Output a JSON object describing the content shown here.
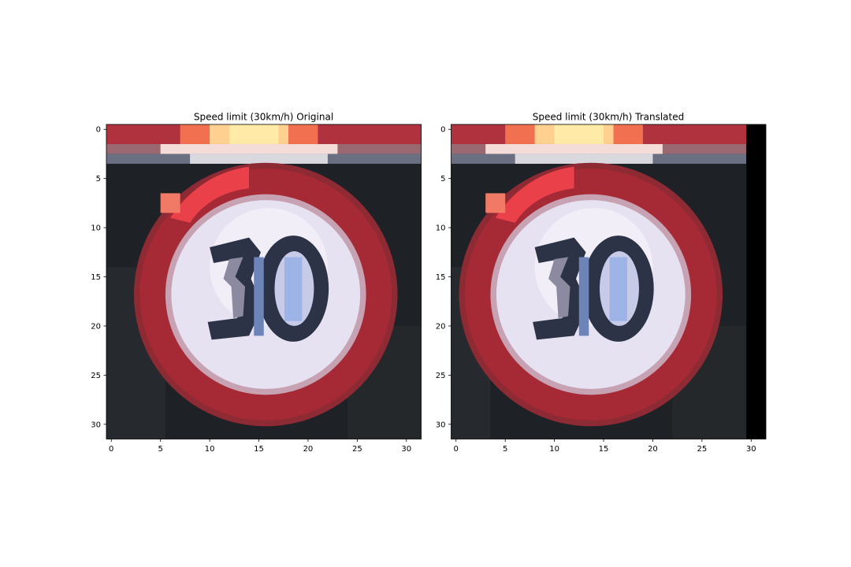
{
  "figure": {
    "panels": [
      {
        "title": "Speed limit (30km/h) Original",
        "x_ticks": [
          "0",
          "5",
          "10",
          "15",
          "20",
          "25",
          "30"
        ],
        "y_ticks": [
          "0",
          "5",
          "10",
          "15",
          "20",
          "25",
          "30"
        ],
        "image_description": "32x32 pixelated photo of a circular red-bordered speed limit sign showing 30, dark background, orange/red banner along the top rows",
        "translated": false
      },
      {
        "title": "Speed limit (30km/h) Translated",
        "x_ticks": [
          "0",
          "5",
          "10",
          "15",
          "20",
          "25",
          "30"
        ],
        "y_ticks": [
          "0",
          "5",
          "10",
          "15",
          "20",
          "25",
          "30"
        ],
        "image_description": "Same sign image shifted left, rightmost two columns filled black",
        "translated": true,
        "black_columns_from": 29.5
      }
    ],
    "colors": {
      "sign_red": "#a52a35",
      "sign_inner": "#e6e2f2",
      "digit_dark": "#2d3346",
      "background_dark": "#1e2126",
      "banner_orange": "#f07050",
      "banner_yellow": "#ffe6a0",
      "padding_black": "#000000"
    }
  }
}
